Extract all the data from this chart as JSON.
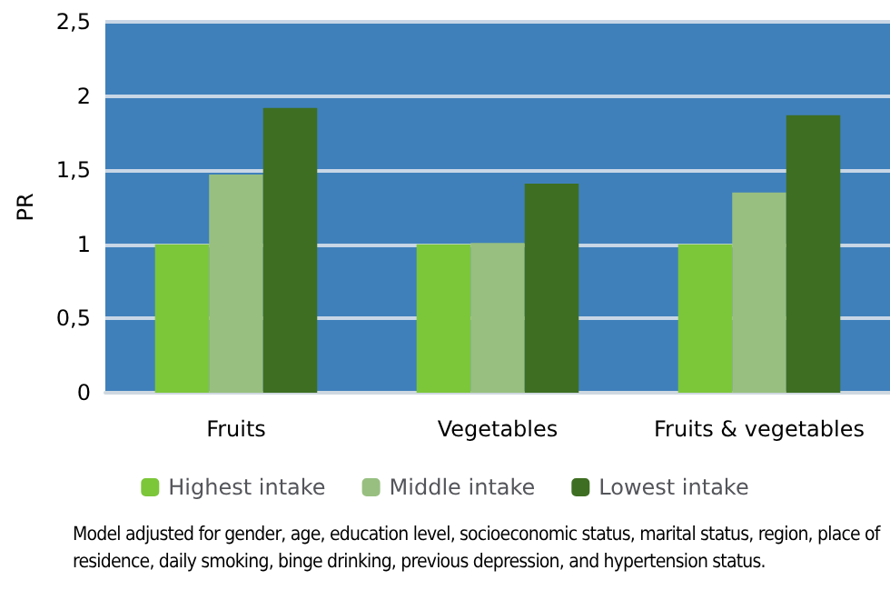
{
  "chart_data": {
    "type": "bar",
    "ylabel": "PR",
    "categories": [
      "Fruits",
      "Vegetables",
      "Fruits & vegetables"
    ],
    "series": [
      {
        "name": "Highest intake",
        "color": "#7cc63a",
        "values": [
          1.0,
          1.0,
          1.0
        ]
      },
      {
        "name": "Middle intake",
        "color": "#98bf80",
        "values": [
          1.47,
          1.01,
          1.35
        ]
      },
      {
        "name": "Lowest intake",
        "color": "#3e6e22",
        "values": [
          1.92,
          1.41,
          1.87
        ]
      }
    ],
    "ylim": [
      0,
      2.5
    ],
    "yticks": [
      0,
      {
        "value": 0.5,
        "label": "0,5"
      },
      1,
      {
        "value": 1.5,
        "label": "1,5"
      },
      2,
      {
        "value": 2.5,
        "label": "2,5"
      }
    ],
    "grid": "y",
    "legend": "bottom",
    "annotations": [
      "Model adjusted for gender, age, education level, socioeconomic status, marital status, region, place of residence, daily smoking, binge drinking, previous depression, and hypertension status."
    ]
  }
}
